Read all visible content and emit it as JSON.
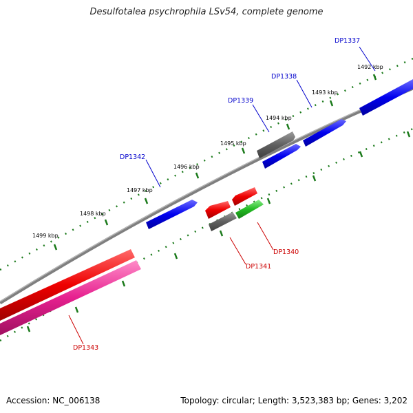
{
  "title": "Desulfotalea psychrophila LSv54, complete genome",
  "footer": {
    "accession": "Accession: NC_006138",
    "summary": "Topology: circular; Length: 3,523,383 bp; Genes: 3,202"
  },
  "colors": {
    "backbone": "#7f7f7f",
    "ticks": "#1b7a1b",
    "forward_label": "#0000cc",
    "reverse_label": "#cc0000",
    "blue": "#0000ee",
    "gray": "#606060",
    "red": "#ee0000",
    "green": "#22bb22",
    "magenta": "#e6208f"
  },
  "scale_labels": [
    "1492 kbp",
    "1493 kbp",
    "1494 kbp",
    "1495 kbp",
    "1496 kbp",
    "1497 kbp",
    "1498 kbp",
    "1499 kbp"
  ],
  "gene_labels": {
    "DP1337": "DP1337",
    "DP1338": "DP1338",
    "DP1339": "DP1339",
    "DP1340": "DP1340",
    "DP1341": "DP1341",
    "DP1342": "DP1342",
    "DP1343": "DP1343"
  }
}
